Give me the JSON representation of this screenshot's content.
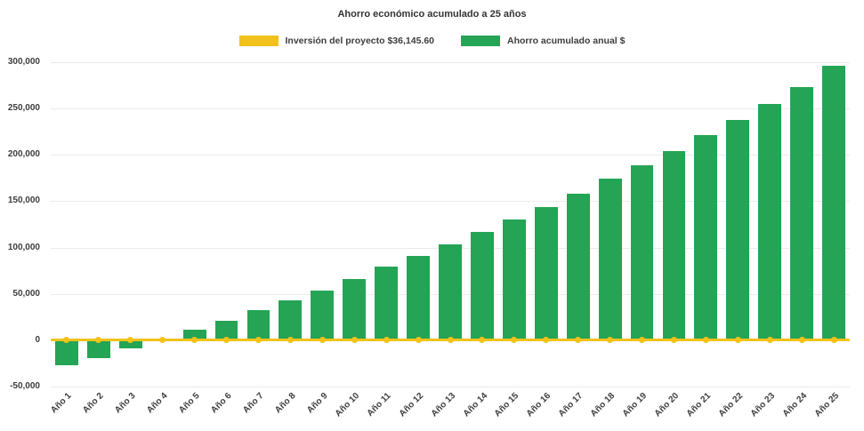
{
  "chart_data": {
    "type": "bar",
    "title": "Ahorro económico acumulado a 25 años",
    "categories": [
      "Año 1",
      "Año 2",
      "Año 3",
      "Año 4",
      "Año 5",
      "Año 6",
      "Año 7",
      "Año 8",
      "Año 9",
      "Año 10",
      "Año 11",
      "Año 12",
      "Año 13",
      "Año 14",
      "Año 15",
      "Año 16",
      "Año 17",
      "Año 18",
      "Año 19",
      "Año 20",
      "Año 21",
      "Año 22",
      "Año 23",
      "Año 24",
      "Año 25"
    ],
    "series": [
      {
        "name": "Inversión del proyecto $36,145.60",
        "type": "line",
        "color": "#F1C21B",
        "values": [
          0,
          0,
          0,
          0,
          0,
          0,
          0,
          0,
          0,
          0,
          0,
          0,
          0,
          0,
          0,
          0,
          0,
          0,
          0,
          0,
          0,
          0,
          0,
          0,
          0
        ]
      },
      {
        "name": "Ahorro acumulado anual $",
        "type": "bar",
        "color": "#24A454",
        "values": [
          -27000,
          -19000,
          -9000,
          1000,
          11000,
          21000,
          32000,
          43000,
          54000,
          66000,
          79000,
          91000,
          103000,
          117000,
          130000,
          144000,
          158000,
          174000,
          189000,
          204000,
          221000,
          238000,
          255000,
          273000,
          296000
        ]
      }
    ],
    "ylim": [
      -50000,
      300000
    ],
    "yticks": [
      {
        "value": 300000,
        "label": "300,000"
      },
      {
        "value": 250000,
        "label": "250,000"
      },
      {
        "value": 200000,
        "label": "200,000"
      },
      {
        "value": 150000,
        "label": "150,000"
      },
      {
        "value": 100000,
        "label": "100,000"
      },
      {
        "value": 50000,
        "label": "50,000"
      },
      {
        "value": 0,
        "label": "0"
      },
      {
        "value": -50000,
        "label": "-50,000"
      }
    ],
    "grid": true,
    "legend_position": "top"
  }
}
